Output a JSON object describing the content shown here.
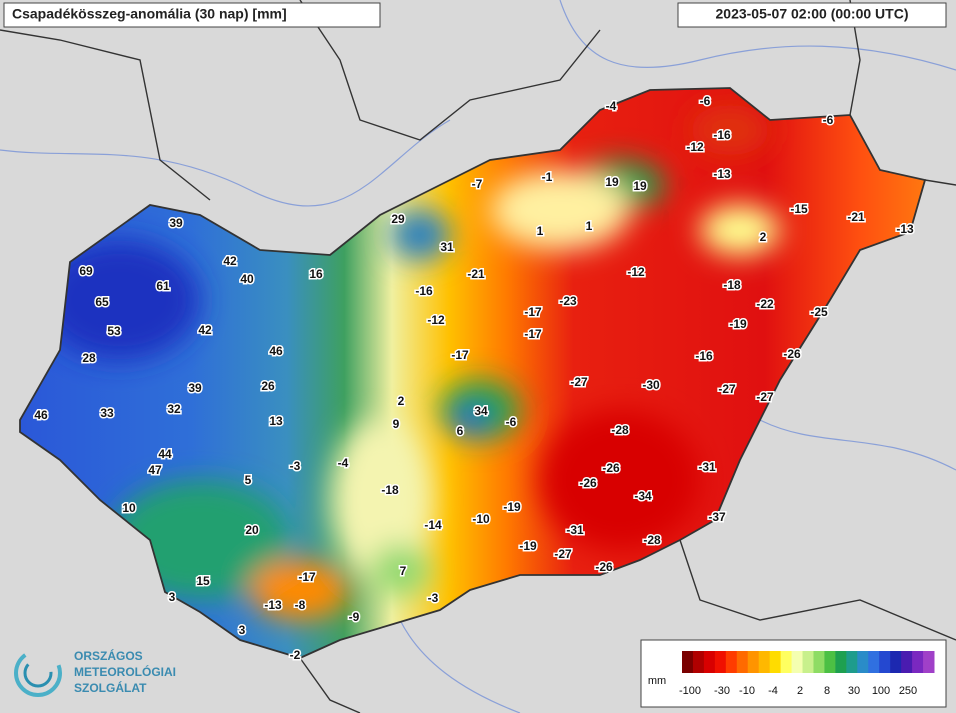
{
  "header": {
    "title": "Csapadékösszeg-anomália (30 nap) [mm]",
    "timestamp": "2023-05-07 02:00 (00:00 UTC)"
  },
  "stations": [
    39,
    69,
    61,
    42,
    40,
    16,
    65,
    53,
    42,
    28,
    46,
    39,
    26,
    46,
    33,
    32,
    13,
    44,
    47,
    5,
    -3,
    -4,
    10,
    20,
    15,
    3,
    -17,
    -13,
    -8,
    3,
    -2,
    -9,
    7,
    -3,
    -18,
    -14,
    -10,
    -19,
    -19,
    -31,
    -27,
    -28,
    -26,
    -37,
    -34,
    -26,
    -26,
    -31,
    -28,
    2,
    9,
    34,
    6,
    -6,
    -27,
    -30,
    -27,
    -27,
    -26,
    -16,
    -19,
    -22,
    -25,
    -18,
    -17,
    -17,
    -17,
    -23,
    -12,
    -16,
    -21,
    31,
    29,
    -7,
    -1,
    1,
    1,
    19,
    19,
    -12,
    2,
    -15,
    -21,
    -13,
    -13,
    -12,
    -16,
    -6,
    -4,
    -6
  ],
  "legend": {
    "unit": "mm",
    "labels": [
      -100,
      -30,
      -10,
      -4,
      2,
      8,
      30,
      100,
      250
    ],
    "colors": [
      "#7a0000",
      "#b00000",
      "#d80000",
      "#f01000",
      "#ff3c00",
      "#ff6a00",
      "#ff9400",
      "#ffb800",
      "#ffdc00",
      "#ffff60",
      "#f4ffb0",
      "#c8f08c",
      "#8edc64",
      "#4cc044",
      "#1ea050",
      "#1e9c8c",
      "#2a8cc8",
      "#3070e0",
      "#2448d0",
      "#1c28b0",
      "#4a1cb0",
      "#7a28c0",
      "#a040c8"
    ]
  },
  "logo": {
    "line1": "ORSZÁGOS",
    "line2": "METEOROLÓGIAI",
    "line3": "SZOLGÁLAT"
  }
}
